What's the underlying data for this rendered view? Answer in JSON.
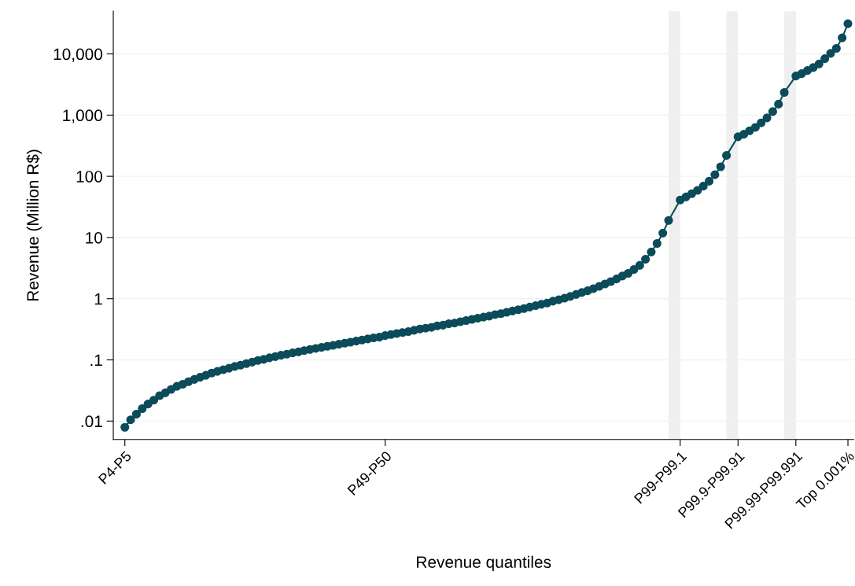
{
  "chart_data": {
    "type": "line",
    "xlabel": "Revenue quantiles",
    "ylabel": "Revenue (Million R$)",
    "categories": [
      "P4-P5",
      null,
      null,
      null,
      null,
      null,
      null,
      null,
      null,
      null,
      null,
      null,
      null,
      null,
      null,
      null,
      null,
      null,
      null,
      null,
      null,
      null,
      null,
      null,
      null,
      null,
      null,
      null,
      null,
      null,
      null,
      null,
      null,
      null,
      null,
      null,
      null,
      null,
      null,
      null,
      null,
      null,
      null,
      null,
      null,
      "P49-P50",
      null,
      null,
      null,
      null,
      null,
      null,
      null,
      null,
      null,
      null,
      null,
      null,
      null,
      null,
      null,
      null,
      null,
      null,
      null,
      null,
      null,
      null,
      null,
      null,
      null,
      null,
      null,
      null,
      null,
      null,
      null,
      null,
      null,
      null,
      null,
      null,
      null,
      null,
      null,
      null,
      null,
      null,
      null,
      null,
      null,
      null,
      null,
      null,
      null,
      null,
      "P99-P99.1",
      null,
      null,
      null,
      null,
      null,
      null,
      null,
      null,
      null,
      "P99.9-P99.91",
      null,
      null,
      null,
      null,
      null,
      null,
      null,
      null,
      null,
      "P99.99-P99.991",
      null,
      null,
      null,
      null,
      null,
      null,
      null,
      null,
      "Top 0.001%"
    ],
    "series": [
      {
        "color": "#0b4b5a",
        "values": [
          0.0079,
          0.0105,
          0.013,
          0.016,
          0.019,
          0.022,
          0.026,
          0.029,
          0.033,
          0.037,
          0.04,
          0.044,
          0.048,
          0.052,
          0.056,
          0.061,
          0.065,
          0.069,
          0.073,
          0.078,
          0.082,
          0.087,
          0.092,
          0.098,
          0.102,
          0.108,
          0.113,
          0.119,
          0.124,
          0.13,
          0.135,
          0.142,
          0.148,
          0.154,
          0.16,
          0.167,
          0.173,
          0.18,
          0.188,
          0.195,
          0.203,
          0.211,
          0.22,
          0.229,
          0.235,
          0.25,
          0.26,
          0.27,
          0.28,
          0.29,
          0.305,
          0.32,
          0.33,
          0.34,
          0.36,
          0.37,
          0.39,
          0.4,
          0.42,
          0.44,
          0.46,
          0.48,
          0.5,
          0.52,
          0.55,
          0.57,
          0.6,
          0.63,
          0.66,
          0.69,
          0.73,
          0.77,
          0.81,
          0.85,
          0.91,
          0.96,
          1.02,
          1.09,
          1.17,
          1.26,
          1.35,
          1.46,
          1.59,
          1.74,
          1.9,
          2.1,
          2.35,
          2.6,
          3.0,
          3.5,
          4.4,
          5.8,
          8.0,
          11.8,
          19,
          null,
          41,
          46,
          52,
          59,
          69,
          83,
          106,
          143,
          219,
          null,
          442,
          487,
          555,
          630,
          747,
          900,
          1140,
          1510,
          2350,
          null,
          4350,
          4760,
          5350,
          5980,
          6850,
          8350,
          10200,
          12300,
          18300,
          31200
        ]
      }
    ],
    "log": "y",
    "ylim": [
      0.005,
      50000
    ],
    "yticks": [
      {
        "value": 0.01,
        "label": ".01"
      },
      {
        "value": 0.1,
        "label": ".1"
      },
      1,
      10,
      100,
      {
        "value": 1000,
        "label": "1,000"
      },
      {
        "value": 10000,
        "label": "10,000"
      }
    ],
    "grid": "y",
    "marker": "circle",
    "line_style": "solid"
  }
}
